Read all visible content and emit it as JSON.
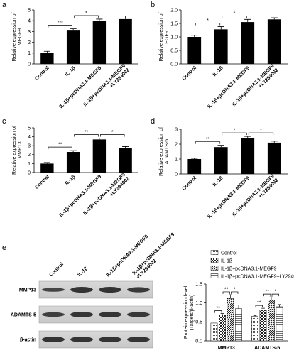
{
  "chart_data": [
    {
      "type": "bar",
      "panel_label": "a",
      "y_label": "Relative expression of MEGF9",
      "categories": [
        "Control",
        "IL-1β",
        "IL-1β+pcDNA3.1-MEGF9",
        "IL-1β+pcDNA3.1-MEGF9 +LY294002"
      ],
      "values": [
        1.05,
        3.15,
        4.0,
        4.15
      ],
      "errors": [
        0.12,
        0.1,
        0.15,
        0.3
      ],
      "color": "#000000",
      "ylim": [
        0,
        5
      ],
      "yticks": [
        0,
        1,
        2,
        3,
        4,
        5
      ],
      "annotations": [
        {
          "text": "***",
          "from": 0,
          "to": 1
        },
        {
          "text": "*",
          "from": 1,
          "to": 2
        }
      ]
    },
    {
      "type": "bar",
      "panel_label": "b",
      "y_label": "Relative expression of EGFR",
      "categories": [
        "Control",
        "IL-1β",
        "IL-1β+pcDNA3.1-MEGF9",
        "IL-1β+pcDNA3.1-MEGF9 +LY294002"
      ],
      "values": [
        1.0,
        1.28,
        1.55,
        1.65
      ],
      "errors": [
        0.06,
        0.1,
        0.1,
        0.06
      ],
      "color": "#000000",
      "ylim": [
        0,
        2
      ],
      "yticks": [
        {
          "value": 0,
          "label": "0.0"
        },
        {
          "value": 0.5,
          "label": "0.5"
        },
        {
          "value": 1,
          "label": "1.0"
        },
        {
          "value": 1.5,
          "label": "1.5"
        },
        {
          "value": 2,
          "label": "2.0"
        }
      ],
      "annotations": [
        {
          "text": "*",
          "from": 0,
          "to": 1
        },
        {
          "text": "*",
          "from": 1,
          "to": 2
        }
      ]
    },
    {
      "type": "bar",
      "panel_label": "c",
      "y_label": "Relative expression of MMP13",
      "categories": [
        "Control",
        "IL-1β",
        "IL-1β+pcDNA3.1-MEGF9",
        "IL-1β+pcDNA3.1-MEGF9 +LY294002"
      ],
      "values": [
        1.0,
        2.3,
        3.7,
        2.7
      ],
      "errors": [
        0.12,
        0.15,
        0.15,
        0.2
      ],
      "color": "#000000",
      "ylim": [
        0,
        5
      ],
      "yticks": [
        0,
        1,
        2,
        3,
        4,
        5
      ],
      "annotations": [
        {
          "text": "**",
          "from": 0,
          "to": 1
        },
        {
          "text": "**",
          "from": 1,
          "to": 2
        },
        {
          "text": "*",
          "from": 2,
          "to": 3
        }
      ]
    },
    {
      "type": "bar",
      "panel_label": "d",
      "y_label": "Relative expression of ADAMTS-5",
      "categories": [
        "Control",
        "IL-1β",
        "IL-1β+pcDNA3.1-MEGF9",
        "IL-1β+pcDNA3.1-MEGF9 +LY294002"
      ],
      "values": [
        1.0,
        1.8,
        2.4,
        2.1
      ],
      "errors": [
        0.05,
        0.12,
        0.12,
        0.1
      ],
      "color": "#000000",
      "ylim": [
        0,
        3
      ],
      "yticks": [
        0,
        1,
        2,
        3
      ],
      "annotations": [
        {
          "text": "**",
          "from": 0,
          "to": 1
        },
        {
          "text": "*",
          "from": 1,
          "to": 2
        },
        {
          "text": "*",
          "from": 2,
          "to": 3
        }
      ]
    },
    {
      "type": "grouped_bar",
      "panel_label": "e",
      "y_label": "Protein expression level (Targets/β-actin)",
      "categories": [
        "MMP13",
        "ADAMTS-5"
      ],
      "series": [
        {
          "name": "Control",
          "values": [
            0.47,
            0.65
          ],
          "errors": [
            0.03,
            0.02
          ]
        },
        {
          "name": "IL-1β",
          "values": [
            0.68,
            0.82
          ],
          "errors": [
            0.04,
            0.04
          ]
        },
        {
          "name": "IL-1β+pcDNA3.1-MEGF9",
          "values": [
            1.12,
            1.08
          ],
          "errors": [
            0.1,
            0.08
          ]
        },
        {
          "name": "IL-1β+pcDNA3.1-MEGF9+LY294002",
          "values": [
            0.85,
            0.9
          ],
          "errors": [
            0.1,
            0.06
          ]
        }
      ],
      "ylim": [
        0,
        1.5
      ],
      "yticks": [
        {
          "value": 0,
          "label": "0.0"
        },
        {
          "value": 0.5,
          "label": "0.5"
        },
        {
          "value": 1,
          "label": "1.0"
        },
        {
          "value": 1.5,
          "label": "1.5"
        }
      ],
      "annotations": [
        {
          "text": "**",
          "group": 0,
          "from": 0,
          "to": 1
        },
        {
          "text": "**",
          "group": 0,
          "from": 1,
          "to": 2
        },
        {
          "text": "*",
          "group": 0,
          "from": 2,
          "to": 3
        },
        {
          "text": "**",
          "group": 1,
          "from": 0,
          "to": 1
        },
        {
          "text": "**",
          "group": 1,
          "from": 1,
          "to": 2
        },
        {
          "text": "*",
          "group": 1,
          "from": 2,
          "to": 3
        }
      ]
    }
  ],
  "blot": {
    "columns": [
      "Control",
      "IL-1β",
      "IL-1β+pcDNA3.1-MEGF9",
      "IL-1β+pcDNA3.1-MEGF9 +LY294002"
    ],
    "rows": [
      "MMP13",
      "ADAMTS-5",
      "β-actin"
    ]
  }
}
